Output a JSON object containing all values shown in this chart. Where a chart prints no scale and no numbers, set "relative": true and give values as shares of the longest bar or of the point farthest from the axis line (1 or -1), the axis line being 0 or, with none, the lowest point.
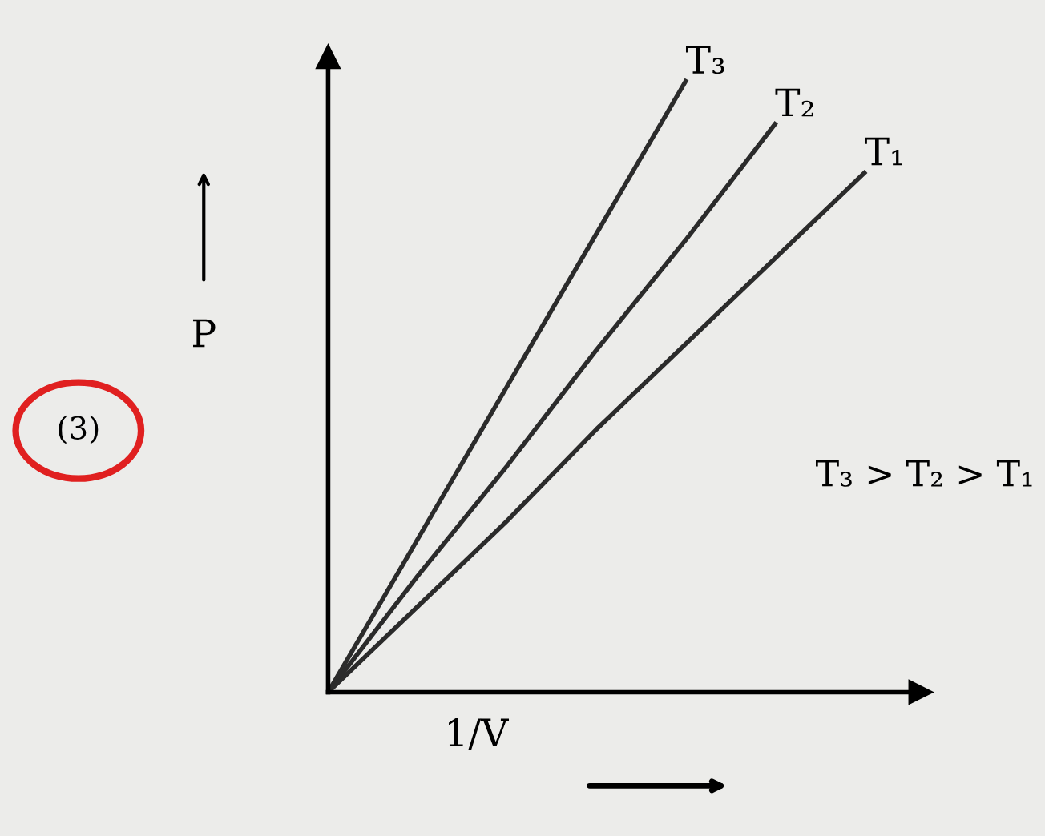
{
  "chart_data": {
    "type": "line",
    "relative": true,
    "xlabel": "1/V",
    "ylabel": "P",
    "marker": "none",
    "line_style": "solid",
    "categories": [
      null,
      null,
      null,
      null,
      null,
      null,
      null
    ],
    "series": [
      {
        "name": "T₃",
        "color": "#2b2b2b",
        "values": [
          0,
          0.25,
          0.5,
          0.75,
          1,
          null,
          null
        ]
      },
      {
        "name": "T₂",
        "color": "#2b2b2b",
        "values": [
          0,
          0.19,
          0.37,
          0.56,
          0.74,
          0.93,
          null
        ]
      },
      {
        "name": "T₁",
        "color": "#2b2b2b",
        "values": [
          0,
          0.14,
          0.28,
          0.43,
          0.57,
          0.71,
          0.85
        ]
      }
    ],
    "annotations": [
      "T₃ > T₂ > T₁",
      "(3)"
    ]
  }
}
